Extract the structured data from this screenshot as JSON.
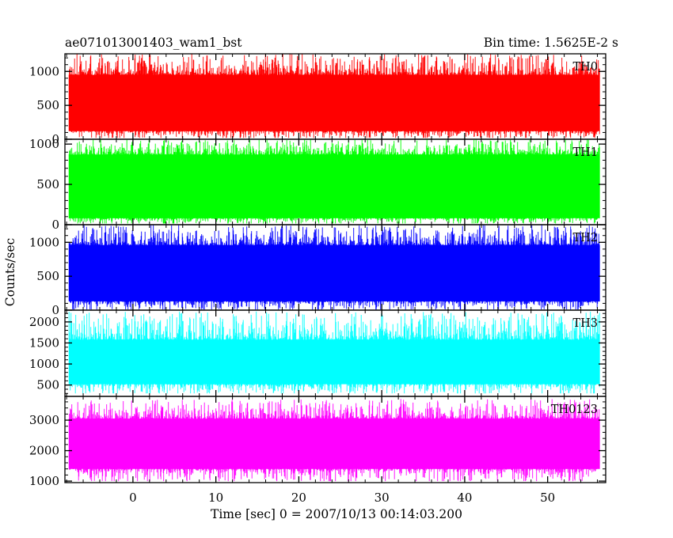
{
  "header": {
    "title": "ae071013001403_wam1_bst",
    "bin_time": "Bin time: 1.5625E-2 s"
  },
  "chart_data": {
    "type": "line",
    "xlabel": "Time [sec] 0 = 2007/10/13 00:14:03.200",
    "ylabel": "Counts/sec",
    "xlim": [
      -8.2,
      57.0
    ],
    "x_ticks": [
      0,
      10,
      20,
      30,
      40,
      50
    ],
    "x_range_data": [
      -7.7,
      56.3
    ],
    "panels": [
      {
        "name": "TH0",
        "color": "#ff0000",
        "ylim": [
          0,
          1260
        ],
        "y_ticks": [
          0,
          500,
          1000
        ],
        "band_low": 120,
        "band_high": 950,
        "min": 20,
        "max": 1260,
        "seed": 11
      },
      {
        "name": "TH1",
        "color": "#00ff00",
        "ylim": [
          0,
          1060
        ],
        "y_ticks": [
          0,
          500,
          1000
        ],
        "band_low": 80,
        "band_high": 870,
        "min": 15,
        "max": 1060,
        "seed": 23
      },
      {
        "name": "TH2",
        "color": "#0000ff",
        "ylim": [
          0,
          1260
        ],
        "y_ticks": [
          0,
          500,
          1000
        ],
        "band_low": 130,
        "band_high": 960,
        "min": 10,
        "max": 1260,
        "seed": 37
      },
      {
        "name": "TH3",
        "color": "#00ffff",
        "ylim": [
          230,
          2280
        ],
        "y_ticks": [
          500,
          1000,
          1500,
          2000
        ],
        "band_low": 520,
        "band_high": 1580,
        "min": 300,
        "max": 2250,
        "seed": 41
      },
      {
        "name": "TH0123",
        "color": "#ff00ff",
        "ylim": [
          950,
          3780
        ],
        "y_ticks": [
          1000,
          2000,
          3000
        ],
        "band_low": 1400,
        "band_high": 3050,
        "min": 1000,
        "max": 3700,
        "seed": 53
      }
    ]
  }
}
